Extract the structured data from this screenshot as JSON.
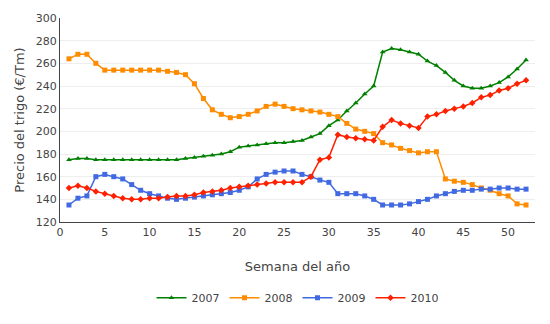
{
  "chart_data": {
    "type": "line",
    "xlabel": "Semana del año",
    "ylabel": "Precio del trigo (€/Tm)",
    "x": [
      1,
      2,
      3,
      4,
      5,
      6,
      7,
      8,
      9,
      10,
      11,
      12,
      13,
      14,
      15,
      16,
      17,
      18,
      19,
      20,
      21,
      22,
      23,
      24,
      25,
      26,
      27,
      28,
      29,
      30,
      31,
      32,
      33,
      34,
      35,
      36,
      37,
      38,
      39,
      40,
      41,
      42,
      43,
      44,
      45,
      46,
      47,
      48,
      49,
      50,
      51,
      52
    ],
    "series": [
      {
        "name": "2007",
        "color": "#008000",
        "marker": "triangle-up",
        "values": [
          175,
          176,
          176,
          175,
          175,
          175,
          175,
          175,
          175,
          175,
          175,
          175,
          175,
          176,
          177,
          178,
          179,
          180,
          182,
          186,
          187,
          188,
          189,
          190,
          190,
          191,
          192,
          195,
          198,
          205,
          210,
          218,
          225,
          233,
          240,
          270,
          273,
          272,
          270,
          268,
          262,
          258,
          252,
          245,
          240,
          238,
          238,
          240,
          243,
          248,
          255,
          263
        ]
      },
      {
        "name": "2008",
        "color": "#ff8c00",
        "marker": "square",
        "values": [
          264,
          268,
          268,
          260,
          254,
          254,
          254,
          254,
          254,
          254,
          254,
          253,
          252,
          250,
          242,
          229,
          219,
          215,
          212,
          213,
          215,
          218,
          222,
          224,
          222,
          220,
          219,
          218,
          217,
          215,
          213,
          207,
          202,
          200,
          198,
          190,
          188,
          185,
          183,
          181,
          182,
          182,
          158,
          156,
          155,
          153,
          150,
          148,
          145,
          143,
          136,
          135
        ]
      },
      {
        "name": "2009",
        "color": "#4169e1",
        "marker": "square",
        "values": [
          135,
          141,
          143,
          160,
          162,
          160,
          158,
          153,
          148,
          145,
          143,
          141,
          140,
          141,
          142,
          143,
          144,
          145,
          146,
          148,
          151,
          158,
          162,
          164,
          165,
          165,
          162,
          160,
          157,
          155,
          145,
          145,
          145,
          143,
          140,
          135,
          135,
          135,
          136,
          138,
          140,
          143,
          145,
          147,
          148,
          148,
          149,
          149,
          150,
          150,
          149,
          149
        ]
      },
      {
        "name": "2010",
        "color": "#ff2000",
        "marker": "diamond",
        "values": [
          150,
          152,
          150,
          147,
          145,
          143,
          141,
          140,
          140,
          141,
          141,
          142,
          143,
          143,
          144,
          146,
          147,
          148,
          150,
          151,
          152,
          153,
          154,
          155,
          155,
          155,
          155,
          160,
          175,
          177,
          197,
          195,
          194,
          193,
          192,
          204,
          210,
          207,
          205,
          203,
          213,
          215,
          218,
          220,
          222,
          225,
          230,
          232,
          236,
          238,
          242,
          245
        ]
      }
    ],
    "xlim": [
      0,
      53
    ],
    "ylim": [
      120,
      300
    ],
    "xticks": [
      0,
      5,
      10,
      15,
      20,
      25,
      30,
      35,
      40,
      45,
      50
    ],
    "yticks": [
      120,
      140,
      160,
      180,
      200,
      220,
      240,
      260,
      280,
      300
    ],
    "grid": "y",
    "legend": "bottom"
  }
}
